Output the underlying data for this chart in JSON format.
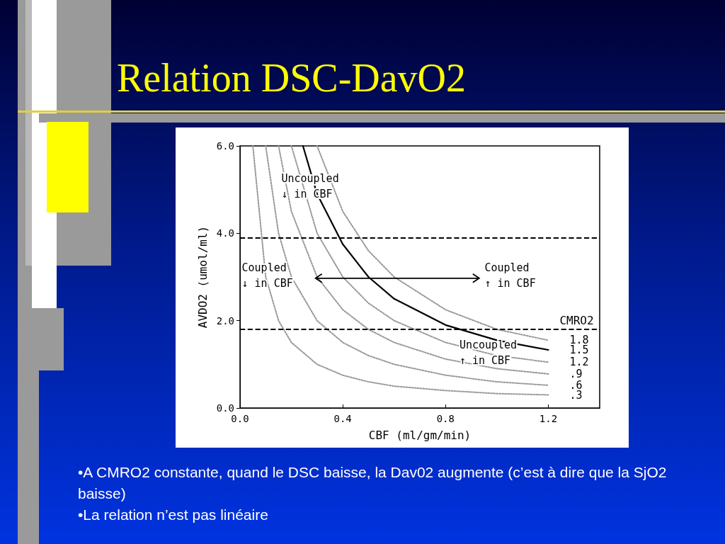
{
  "chart_data": {
    "type": "line",
    "title": "Relation DSC-DavO2",
    "xlabel": "CBF (ml/gm/min)",
    "ylabel": "AVDO2 (umol/ml)",
    "legend_title": "CMRO2",
    "xlim": [
      0,
      1.4
    ],
    "xticks": [
      {
        "value": 0,
        "label": "0.0"
      },
      0.4,
      0.8,
      1.2
    ],
    "ylim": [
      0,
      6
    ],
    "yticks": [
      {
        "value": 0,
        "label": "0.0"
      },
      {
        "value": 2,
        "label": "2.0"
      },
      {
        "value": 4,
        "label": "4.0"
      },
      {
        "value": 6,
        "label": "6.0"
      }
    ],
    "grid": false,
    "legend": "right",
    "marker": "none",
    "series": [
      {
        "name": "1.8",
        "color": "#999999",
        "line_style": "dotted",
        "x": [
          0.3,
          0.4,
          0.5,
          0.6,
          0.8,
          1.0,
          1.2
        ],
        "values": [
          6,
          4.5,
          3.6,
          3,
          2.25,
          1.8,
          1.55
        ]
      },
      {
        "name": "1.5",
        "color": "#000000",
        "line_style": "solid",
        "x": [
          0.245,
          0.3,
          0.4,
          0.5,
          0.6,
          0.8,
          1.0,
          1.2
        ],
        "values": [
          6,
          4.9,
          3.75,
          3,
          2.5,
          1.9,
          1.55,
          1.33
        ]
      },
      {
        "name": "1.2",
        "color": "#999999",
        "line_style": "dotted",
        "x": [
          0.2,
          0.3,
          0.4,
          0.5,
          0.6,
          0.8,
          1.0,
          1.2
        ],
        "values": [
          6,
          4,
          3,
          2.4,
          2,
          1.5,
          1.2,
          1.05
        ]
      },
      {
        "name": ".9",
        "color": "#999999",
        "line_style": "dotted",
        "x": [
          0.15,
          0.2,
          0.3,
          0.4,
          0.5,
          0.6,
          0.8,
          1.0,
          1.2
        ],
        "values": [
          6,
          4.5,
          3,
          2.25,
          1.8,
          1.5,
          1.12,
          0.9,
          0.78
        ]
      },
      {
        "name": ".6",
        "color": "#999999",
        "line_style": "dotted",
        "x": [
          0.1,
          0.15,
          0.2,
          0.3,
          0.4,
          0.5,
          0.6,
          0.8,
          1.0,
          1.2
        ],
        "values": [
          6,
          4,
          3,
          2,
          1.5,
          1.2,
          1,
          0.75,
          0.6,
          0.52
        ]
      },
      {
        "name": ".3",
        "color": "#999999",
        "line_style": "dotted",
        "x": [
          0.05,
          0.1,
          0.15,
          0.2,
          0.3,
          0.4,
          0.5,
          0.6,
          0.8,
          1.0,
          1.2
        ],
        "values": [
          6,
          3,
          2,
          1.5,
          1,
          0.75,
          0.6,
          0.5,
          0.4,
          0.33,
          0.3
        ]
      }
    ],
    "ref_lines": [
      {
        "axis": "y",
        "value": 3.9,
        "line_style": "dashed",
        "color": "#000000"
      },
      {
        "axis": "y",
        "value": 1.8,
        "line_style": "dashed",
        "color": "#000000"
      }
    ],
    "annotations": [
      "Uncoupled\n↓ in CBF",
      "Coupled\n↓ in CBF",
      "Coupled\n↑ in CBF",
      "Uncoupled\n↑ in CBF",
      "•A CMRO2 constante, quand le DSC baisse, la Dav02 augmente (c’est à dire que la SjO2 baisse)",
      "•La relation n’est pas linéaire"
    ]
  }
}
